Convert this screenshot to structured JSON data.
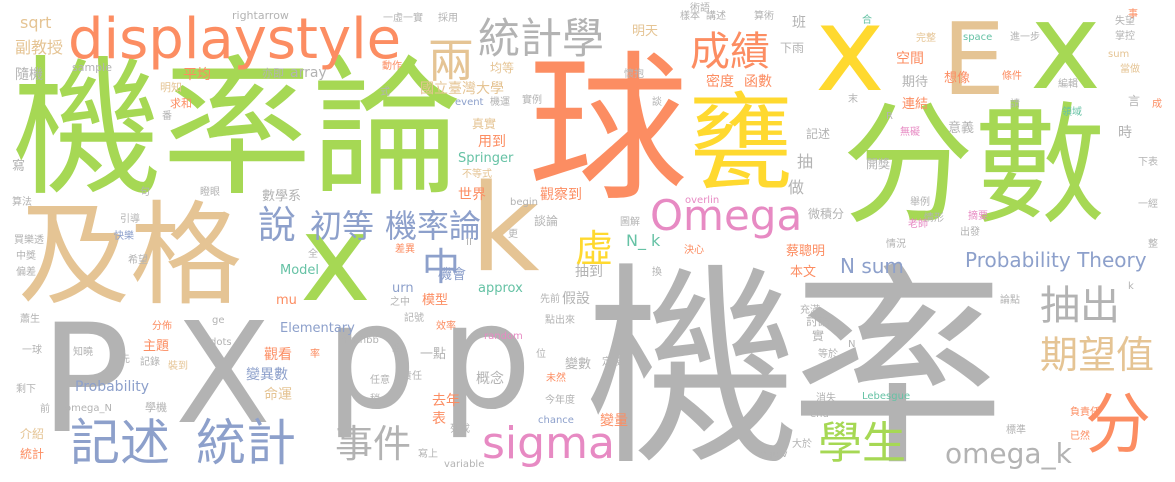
{
  "palette": {
    "green": "#a6d854",
    "orange": "#fc8d62",
    "gray": "#b3b3b3",
    "tan": "#e5c494",
    "blue": "#8da0cb",
    "pink": "#e78ac3",
    "teal": "#66c2a5",
    "yellow": "#ffd92f"
  },
  "words": [
    {
      "text": "機",
      "color": "gray"
    },
    {
      "text": "率",
      "color": "gray"
    },
    {
      "text": "機率論",
      "color": "green"
    },
    {
      "text": "球",
      "color": "orange"
    },
    {
      "text": "甕",
      "color": "yellow"
    },
    {
      "text": "分數",
      "color": "green"
    },
    {
      "text": "及格",
      "color": "tan"
    },
    {
      "text": "x",
      "color": "yellow"
    },
    {
      "text": "E",
      "color": "tan"
    },
    {
      "text": "x",
      "color": "green"
    },
    {
      "text": "x",
      "color": "green"
    },
    {
      "text": "k",
      "color": "tan"
    },
    {
      "text": "P",
      "color": "gray"
    },
    {
      "text": "X",
      "color": "gray"
    },
    {
      "text": "p",
      "color": "gray"
    },
    {
      "text": "p",
      "color": "gray"
    },
    {
      "text": "displaystyle",
      "color": "orange"
    },
    {
      "text": "統計學",
      "color": "gray"
    },
    {
      "text": "兩",
      "color": "tan"
    },
    {
      "text": "成績",
      "color": "orange"
    },
    {
      "text": "Omega",
      "color": "pink"
    },
    {
      "text": "說",
      "color": "blue"
    },
    {
      "text": "初等",
      "color": "blue"
    },
    {
      "text": "機率論",
      "color": "blue"
    },
    {
      "text": "中",
      "color": "blue"
    },
    {
      "text": "虛",
      "color": "yellow"
    },
    {
      "text": "抽出",
      "color": "gray"
    },
    {
      "text": "期望值",
      "color": "tan"
    },
    {
      "text": "分",
      "color": "orange"
    },
    {
      "text": "記述",
      "color": "blue"
    },
    {
      "text": "統計",
      "color": "blue"
    },
    {
      "text": "事件",
      "color": "gray"
    },
    {
      "text": "sigma",
      "color": "pink"
    },
    {
      "text": "學生",
      "color": "green"
    },
    {
      "text": "omega_k",
      "color": "gray"
    },
    {
      "text": "Probability Theory",
      "color": "blue"
    },
    {
      "text": "N sum",
      "color": "blue"
    },
    {
      "text": "sqrt",
      "color": "tan"
    },
    {
      "text": "rightarrow",
      "color": "gray"
    },
    {
      "text": "副教授",
      "color": "tan"
    },
    {
      "text": "隨機",
      "color": "gray"
    },
    {
      "text": "sample",
      "color": "gray"
    },
    {
      "text": "平均",
      "color": "orange"
    },
    {
      "text": "明知",
      "color": "tan"
    },
    {
      "text": "亦即",
      "color": "gray"
    },
    {
      "text": "array",
      "color": "gray"
    },
    {
      "text": "動作",
      "color": "orange"
    },
    {
      "text": "式",
      "color": "gray"
    },
    {
      "text": "國立臺灣大學",
      "color": "tan"
    },
    {
      "text": "均等",
      "color": "tan"
    },
    {
      "text": "明天",
      "color": "tan"
    },
    {
      "text": "event",
      "color": "blue"
    },
    {
      "text": "機運",
      "color": "gray"
    },
    {
      "text": "實例",
      "color": "gray"
    },
    {
      "text": "密度",
      "color": "orange"
    },
    {
      "text": "函數",
      "color": "orange"
    },
    {
      "text": "下雨",
      "color": "gray"
    },
    {
      "text": "空間",
      "color": "orange"
    },
    {
      "text": "期待",
      "color": "gray"
    },
    {
      "text": "想像",
      "color": "orange"
    },
    {
      "text": "連結",
      "color": "orange"
    },
    {
      "text": "意義",
      "color": "gray"
    },
    {
      "text": "記述",
      "color": "gray"
    },
    {
      "text": "真實",
      "color": "tan"
    },
    {
      "text": "用到",
      "color": "orange"
    },
    {
      "text": "Springer",
      "color": "teal"
    },
    {
      "text": "不等式",
      "color": "tan"
    },
    {
      "text": "世界",
      "color": "orange"
    },
    {
      "text": "觀察到",
      "color": "orange"
    },
    {
      "text": "數學系",
      "color": "gray"
    },
    {
      "text": "寫",
      "color": "gray"
    },
    {
      "text": "算法",
      "color": "gray"
    },
    {
      "text": "買樂透",
      "color": "gray"
    },
    {
      "text": "中獎",
      "color": "gray"
    },
    {
      "text": "偏差",
      "color": "gray"
    },
    {
      "text": "談論",
      "color": "gray"
    },
    {
      "text": "N_ k",
      "color": "teal"
    },
    {
      "text": "微積分",
      "color": "gray"
    },
    {
      "text": "開獎",
      "color": "gray"
    },
    {
      "text": "做",
      "color": "gray"
    },
    {
      "text": "抽",
      "color": "gray"
    },
    {
      "text": "蔡聰明",
      "color": "orange"
    },
    {
      "text": "本文",
      "color": "orange"
    },
    {
      "text": "機會",
      "color": "blue"
    },
    {
      "text": "抽到",
      "color": "gray"
    },
    {
      "text": "Model",
      "color": "teal"
    },
    {
      "text": "urn",
      "color": "blue"
    },
    {
      "text": "mu",
      "color": "orange"
    },
    {
      "text": "模型",
      "color": "orange"
    },
    {
      "text": "approx",
      "color": "teal"
    },
    {
      "text": "假設",
      "color": "gray"
    },
    {
      "text": "Elementary",
      "color": "blue"
    },
    {
      "text": "主題",
      "color": "orange"
    },
    {
      "text": "觀看",
      "color": "orange"
    },
    {
      "text": "變異數",
      "color": "blue"
    },
    {
      "text": "命運",
      "color": "tan"
    },
    {
      "text": "Probability",
      "color": "blue"
    },
    {
      "text": "一點",
      "color": "gray"
    },
    {
      "text": "概念",
      "color": "gray"
    },
    {
      "text": "變數",
      "color": "gray"
    },
    {
      "text": "去年",
      "color": "orange"
    },
    {
      "text": "表",
      "color": "orange"
    },
    {
      "text": "變量",
      "color": "orange"
    },
    {
      "text": "討論",
      "color": "gray"
    },
    {
      "text": "實",
      "color": "gray"
    },
    {
      "text": "chance",
      "color": "blue"
    },
    {
      "text": "介紹",
      "color": "tan"
    },
    {
      "text": "統計",
      "color": "orange"
    },
    {
      "text": "學機",
      "color": "gray"
    },
    {
      "text": "Lebesgue",
      "color": "teal"
    },
    {
      "text": "end",
      "color": "gray"
    },
    {
      "text": "variable",
      "color": "gray"
    },
    {
      "text": "一虛一實",
      "color": "gray"
    },
    {
      "text": "採用",
      "color": "gray"
    },
    {
      "text": "講述",
      "color": "gray"
    },
    {
      "text": "算術",
      "color": "gray"
    },
    {
      "text": "班",
      "color": "gray"
    },
    {
      "text": "space",
      "color": "teal"
    },
    {
      "text": "進一步",
      "color": "gray"
    },
    {
      "text": "失望",
      "color": "gray"
    },
    {
      "text": "掌控",
      "color": "gray"
    },
    {
      "text": "當做",
      "color": "tan"
    },
    {
      "text": "sum",
      "color": "tan"
    },
    {
      "text": "領域",
      "color": "teal"
    },
    {
      "text": "條件",
      "color": "orange"
    },
    {
      "text": "完整",
      "color": "tan"
    },
    {
      "text": "編輯",
      "color": "gray"
    },
    {
      "text": "時",
      "color": "gray"
    },
    {
      "text": "下表",
      "color": "gray"
    },
    {
      "text": "一經",
      "color": "gray"
    },
    {
      "text": "整",
      "color": "gray"
    },
    {
      "text": "出發",
      "color": "gray"
    },
    {
      "text": "老師",
      "color": "pink"
    },
    {
      "text": "情況",
      "color": "gray"
    },
    {
      "text": "論點",
      "color": "gray"
    },
    {
      "text": "標準",
      "color": "gray"
    },
    {
      "text": "負責任",
      "color": "orange"
    },
    {
      "text": "已然",
      "color": "orange"
    },
    {
      "text": "大於",
      "color": "gray"
    },
    {
      "text": "消失",
      "color": "gray"
    },
    {
      "text": "等於",
      "color": "gray"
    },
    {
      "text": "充滿",
      "color": "gray"
    },
    {
      "text": "引導",
      "color": "gray"
    },
    {
      "text": "快樂",
      "color": "blue"
    },
    {
      "text": "希望",
      "color": "gray"
    },
    {
      "text": "一球",
      "color": "gray"
    },
    {
      "text": "知曉",
      "color": "gray"
    },
    {
      "text": "剩下",
      "color": "gray"
    },
    {
      "text": "前",
      "color": "gray"
    },
    {
      "text": "omega_N",
      "color": "gray"
    },
    {
      "text": "先",
      "color": "gray"
    },
    {
      "text": "記錄",
      "color": "gray"
    },
    {
      "text": "裝到",
      "color": "tan"
    },
    {
      "text": "分佈",
      "color": "orange"
    },
    {
      "text": "ge",
      "color": "gray"
    },
    {
      "text": "dots",
      "color": "gray"
    },
    {
      "text": "mathbb",
      "color": "gray"
    },
    {
      "text": "之中",
      "color": "gray"
    },
    {
      "text": "效率",
      "color": "orange"
    },
    {
      "text": "random",
      "color": "pink"
    },
    {
      "text": "記號",
      "color": "gray"
    },
    {
      "text": "任意",
      "color": "gray"
    },
    {
      "text": "責任",
      "color": "gray"
    },
    {
      "text": "未然",
      "color": "orange"
    },
    {
      "text": "今年度",
      "color": "gray"
    },
    {
      "text": "點出來",
      "color": "gray"
    },
    {
      "text": "列成",
      "color": "gray"
    },
    {
      "text": "寫上",
      "color": "gray"
    },
    {
      "text": "瞪眼",
      "color": "gray"
    },
    {
      "text": "begin",
      "color": "gray"
    },
    {
      "text": "overlin",
      "color": "pink"
    },
    {
      "text": "決心",
      "color": "orange"
    },
    {
      "text": "換",
      "color": "gray"
    },
    {
      "text": "圖解",
      "color": "gray"
    },
    {
      "text": "差異",
      "color": "orange"
    },
    {
      "text": "全",
      "color": "gray"
    },
    {
      "text": "先前",
      "color": "gray"
    },
    {
      "text": "equiv",
      "color": "gray"
    },
    {
      "text": "舉例",
      "color": "gray"
    },
    {
      "text": "情形",
      "color": "gray"
    },
    {
      "text": "摘要",
      "color": "pink"
    },
    {
      "text": "無礙",
      "color": "pink"
    },
    {
      "text": "言",
      "color": "gray"
    },
    {
      "text": "請",
      "color": "gray"
    },
    {
      "text": "樣本",
      "color": "gray"
    },
    {
      "text": "懷抱",
      "color": "gray"
    },
    {
      "text": "術語",
      "color": "gray"
    },
    {
      "text": "合",
      "color": "teal"
    },
    {
      "text": "事",
      "color": "orange"
    },
    {
      "text": "求和",
      "color": "orange"
    },
    {
      "text": "談",
      "color": "gray"
    },
    {
      "text": "定義",
      "color": "gray"
    },
    {
      "text": "位",
      "color": "gray"
    },
    {
      "text": "般",
      "color": "gray"
    },
    {
      "text": "稍",
      "color": "gray"
    },
    {
      "text": "句",
      "color": "gray"
    },
    {
      "text": "更",
      "color": "gray"
    },
    {
      "text": "番",
      "color": "gray"
    },
    {
      "text": "末",
      "color": "gray"
    },
    {
      "text": "成",
      "color": "orange"
    },
    {
      "text": "率",
      "color": "orange"
    },
    {
      "text": "II",
      "color": "gray"
    },
    {
      "text": "R",
      "color": "gray"
    },
    {
      "text": "N",
      "color": "gray"
    },
    {
      "text": "k",
      "color": "gray"
    },
    {
      "text": "蕭生",
      "color": "gray"
    }
  ]
}
